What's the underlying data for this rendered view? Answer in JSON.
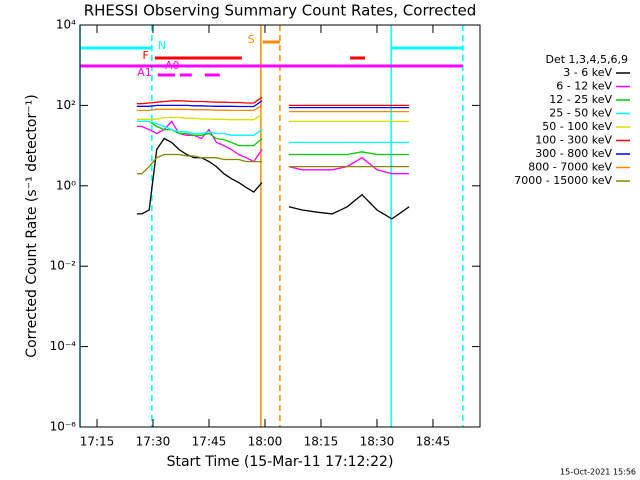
{
  "chart_data": {
    "type": "line",
    "title": "RHESSI Observing Summary Count Rates, Corrected",
    "x_label": "Start Time (15-Mar-11 17:12:22)",
    "y_label": "Corrected Count Rate (s⁻¹ detector⁻¹)",
    "footer": "15-Oct-2021 15:56",
    "legend_title": "Det 1,3,4,5,6,9",
    "log_y": true,
    "xlim": [
      1030.45,
      1137.6
    ],
    "ylim": [
      1e-06,
      10000
    ],
    "xticks": [
      {
        "value": 1035,
        "label": "17:15"
      },
      {
        "value": 1050,
        "label": "17:30"
      },
      {
        "value": 1065,
        "label": "17:45"
      },
      {
        "value": 1080,
        "label": "18:00"
      },
      {
        "value": 1095,
        "label": "18:15"
      },
      {
        "value": 1110,
        "label": "18:30"
      },
      {
        "value": 1125,
        "label": "18:45"
      }
    ],
    "yticks": [
      {
        "value": 1e-06,
        "label": "10⁻⁶"
      },
      {
        "value": 0.0001,
        "label": "10⁻⁴"
      },
      {
        "value": 0.01,
        "label": "10⁻²"
      },
      {
        "value": 1,
        "label": "10⁰"
      },
      {
        "value": 100,
        "label": "10²"
      },
      {
        "value": 10000,
        "label": "10⁴"
      }
    ],
    "x": [
      1045.7,
      1047,
      1049,
      1051,
      1053,
      1055,
      1057,
      1059,
      1061,
      1063,
      1065,
      1067,
      1069,
      1071,
      1073,
      1075,
      1077,
      1079.2,
      1082,
      1086.4,
      1090,
      1094,
      1098,
      1102,
      1106,
      1110,
      1114,
      1118.6
    ],
    "series": [
      {
        "name": "3 - 6 keV",
        "color": "#000000",
        "values": [
          0.2,
          0.2,
          0.25,
          8,
          15,
          12,
          8,
          6,
          5,
          5,
          4,
          3,
          2,
          1.5,
          1.2,
          0.9,
          0.7,
          1.2,
          null,
          0.3,
          0.25,
          0.22,
          0.2,
          0.3,
          0.6,
          0.25,
          0.15,
          0.3
        ]
      },
      {
        "name": "6 - 12 keV",
        "color": "#ff00ff",
        "values": [
          30,
          30,
          25,
          20,
          25,
          40,
          20,
          18,
          18,
          15,
          25,
          12,
          10,
          8,
          6,
          5,
          4,
          8,
          null,
          3,
          2.5,
          2.5,
          2.5,
          3,
          5,
          2.5,
          2,
          2
        ]
      },
      {
        "name": "12 - 25 keV",
        "color": "#00cc00",
        "values": [
          40,
          40,
          40,
          30,
          25,
          25,
          20,
          20,
          18,
          18,
          20,
          15,
          14,
          12,
          10,
          10,
          10,
          15,
          null,
          6,
          6,
          6,
          6,
          6,
          7,
          6,
          6,
          6
        ]
      },
      {
        "name": "25 - 50 keV",
        "color": "#00ffff",
        "values": [
          40,
          40,
          40,
          35,
          30,
          25,
          22,
          22,
          20,
          20,
          22,
          20,
          20,
          18,
          18,
          18,
          18,
          25,
          null,
          12,
          12,
          12,
          12,
          12,
          12,
          12,
          12,
          12
        ]
      },
      {
        "name": "50 - 100 keV",
        "color": "#dddd00",
        "values": [
          45,
          45,
          45,
          45,
          50,
          50,
          50,
          48,
          48,
          46,
          46,
          45,
          45,
          44,
          44,
          44,
          44,
          60,
          null,
          40,
          40,
          40,
          40,
          40,
          40,
          40,
          40,
          40
        ]
      },
      {
        "name": "100 - 300 keV",
        "color": "#ff0000",
        "values": [
          110,
          110,
          115,
          120,
          125,
          130,
          130,
          128,
          125,
          125,
          122,
          120,
          120,
          118,
          118,
          115,
          115,
          160,
          null,
          100,
          100,
          100,
          100,
          100,
          100,
          100,
          100,
          100
        ]
      },
      {
        "name": "300 - 800 keV",
        "color": "#0000ff",
        "values": [
          95,
          95,
          95,
          100,
          100,
          100,
          100,
          100,
          98,
          98,
          96,
          95,
          95,
          95,
          94,
          94,
          94,
          130,
          null,
          88,
          88,
          88,
          88,
          88,
          88,
          88,
          88,
          88
        ]
      },
      {
        "name": "800 - 7000 keV",
        "color": "#ff8800",
        "values": [
          75,
          75,
          75,
          80,
          80,
          80,
          80,
          80,
          78,
          78,
          78,
          76,
          76,
          75,
          75,
          75,
          75,
          100,
          null,
          70,
          70,
          70,
          70,
          70,
          70,
          70,
          70,
          70
        ]
      },
      {
        "name": "7000 - 15000 keV",
        "color": "#888800",
        "values": [
          2,
          2,
          3,
          5,
          6,
          6,
          6,
          5.5,
          5.5,
          5,
          5,
          5,
          4.5,
          4.5,
          4.5,
          4,
          4,
          4,
          null,
          3,
          3,
          3,
          3,
          3,
          3,
          3,
          3,
          3
        ]
      }
    ],
    "annotations": [
      {
        "label": "S",
        "color": "#ff8800",
        "spans": [
          [
            1079.4,
            1084.0
          ]
        ]
      },
      {
        "label": "N",
        "color": "#00ffff",
        "spans": [
          [
            1030.45,
            1049.7
          ],
          [
            1113.8,
            1133.0
          ]
        ]
      },
      {
        "label": "F",
        "color": "#ff0000",
        "spans": [
          [
            1050.5,
            1073.8
          ],
          [
            1102.8,
            1106.8
          ]
        ]
      },
      {
        "label": "A0",
        "color": "#ff00ff",
        "spans": [
          [
            1030.45,
            1133.0
          ]
        ]
      },
      {
        "label": "A1",
        "color": "#ff00ff",
        "spans": [
          [
            1051.3,
            1055.9
          ],
          [
            1057.2,
            1060.4
          ],
          [
            1063.9,
            1067.9
          ]
        ]
      }
    ],
    "vlines": [
      {
        "x": 1030.45,
        "color": "#00ffff",
        "dashed": false
      },
      {
        "x": 1049.7,
        "color": "#00ffff",
        "dashed": true
      },
      {
        "x": 1113.8,
        "color": "#00ffff",
        "dashed": false
      },
      {
        "x": 1133.0,
        "color": "#00ffff",
        "dashed": true
      },
      {
        "x": 1078.9,
        "color": "#ff8800",
        "dashed": false
      },
      {
        "x": 1084.0,
        "color": "#ff8800",
        "dashed": true
      }
    ]
  }
}
